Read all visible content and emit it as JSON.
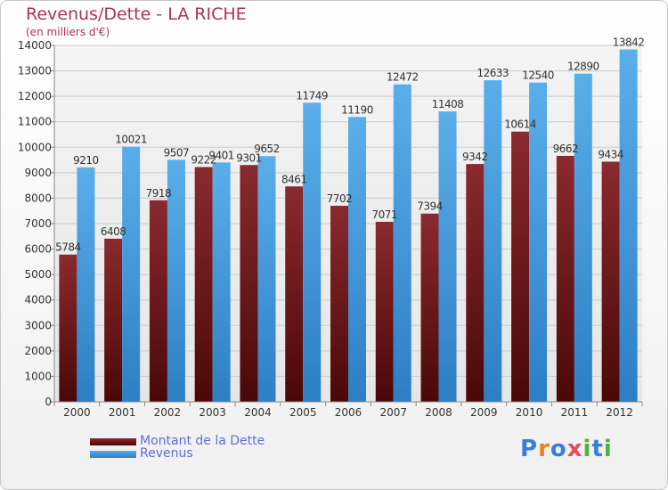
{
  "title": "Revenus/Dette - LA RICHE",
  "subtitle": "(en milliers d'€)",
  "logo": {
    "text": "Proxiti"
  },
  "colors": {
    "series_dette": "#7a1f24",
    "series_revenus": "#4ea1e0",
    "title": "#b0305a",
    "legend_text": "#5b6fd6"
  },
  "legend": [
    {
      "label": "Montant de la Dette",
      "color": "#7a1f24"
    },
    {
      "label": "Revenus",
      "color": "#4ea1e0"
    }
  ],
  "chart_data": {
    "type": "bar",
    "title": "Revenus/Dette - LA RICHE",
    "subtitle": "(en milliers d'€)",
    "categories": [
      "2000",
      "2001",
      "2002",
      "2003",
      "2004",
      "2005",
      "2006",
      "2007",
      "2008",
      "2009",
      "2010",
      "2011",
      "2012"
    ],
    "series": [
      {
        "name": "Montant de la Dette",
        "values": [
          5784,
          6408,
          7918,
          9222,
          9301,
          8461,
          7702,
          7071,
          7394,
          9342,
          10614,
          9662,
          9434
        ],
        "labels": [
          "5784",
          "6408",
          "7918",
          "9222",
          "9301",
          "8461",
          "7702",
          "7071",
          "7394",
          "9342",
          "10614",
          "9662",
          "9434"
        ]
      },
      {
        "name": "Revenus",
        "values": [
          9210,
          10021,
          9507,
          9401,
          9652,
          11749,
          11190,
          12472,
          11408,
          12633,
          12540,
          12890,
          13842
        ],
        "labels": [
          "9210",
          "10021",
          "9507",
          "9401",
          "9652",
          "11749",
          "11190",
          "12472",
          "11408",
          "12633",
          "12540",
          "12890",
          "13842"
        ]
      }
    ],
    "ylim": [
      0,
      14000
    ],
    "yticks": [
      "0",
      "1000",
      "2000",
      "3000",
      "4000",
      "5000",
      "6000",
      "7000",
      "8000",
      "9000",
      "10000",
      "11000",
      "12000",
      "13000",
      "14000"
    ],
    "grid": true,
    "legend_position": "bottom-left"
  }
}
